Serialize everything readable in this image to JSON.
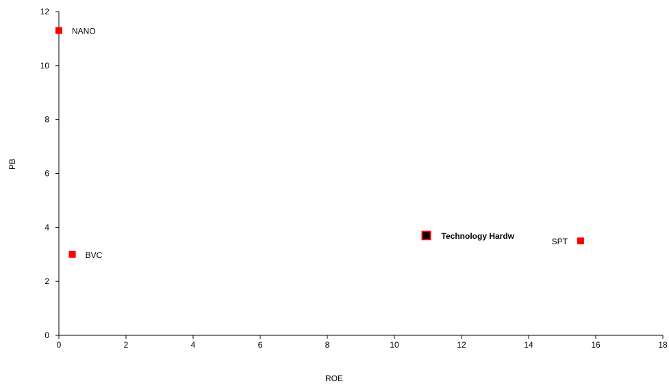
{
  "chart_data": {
    "type": "scatter",
    "xlabel": "ROE",
    "ylabel": "PB",
    "xlim": [
      0,
      18
    ],
    "ylim": [
      0,
      12
    ],
    "x_ticks": [
      0,
      2,
      4,
      6,
      8,
      10,
      12,
      14,
      16,
      18
    ],
    "y_ticks": [
      0,
      2,
      4,
      6,
      8,
      10,
      12
    ],
    "grid": false,
    "legend": "none",
    "points": [
      {
        "label": "NANO",
        "x": 0.0,
        "y": 11.3,
        "color": "#ff0000",
        "highlight": false,
        "label_side": "right"
      },
      {
        "label": "BVC",
        "x": 0.4,
        "y": 3.0,
        "color": "#ff0000",
        "highlight": false,
        "label_side": "right"
      },
      {
        "label": "Technology Hardw",
        "x": 10.95,
        "y": 3.7,
        "color": "#000000",
        "outline": "#ff0000",
        "highlight": true,
        "label_side": "right"
      },
      {
        "label": "SPT",
        "x": 15.55,
        "y": 3.5,
        "color": "#ff0000",
        "highlight": false,
        "label_side": "left"
      }
    ]
  }
}
